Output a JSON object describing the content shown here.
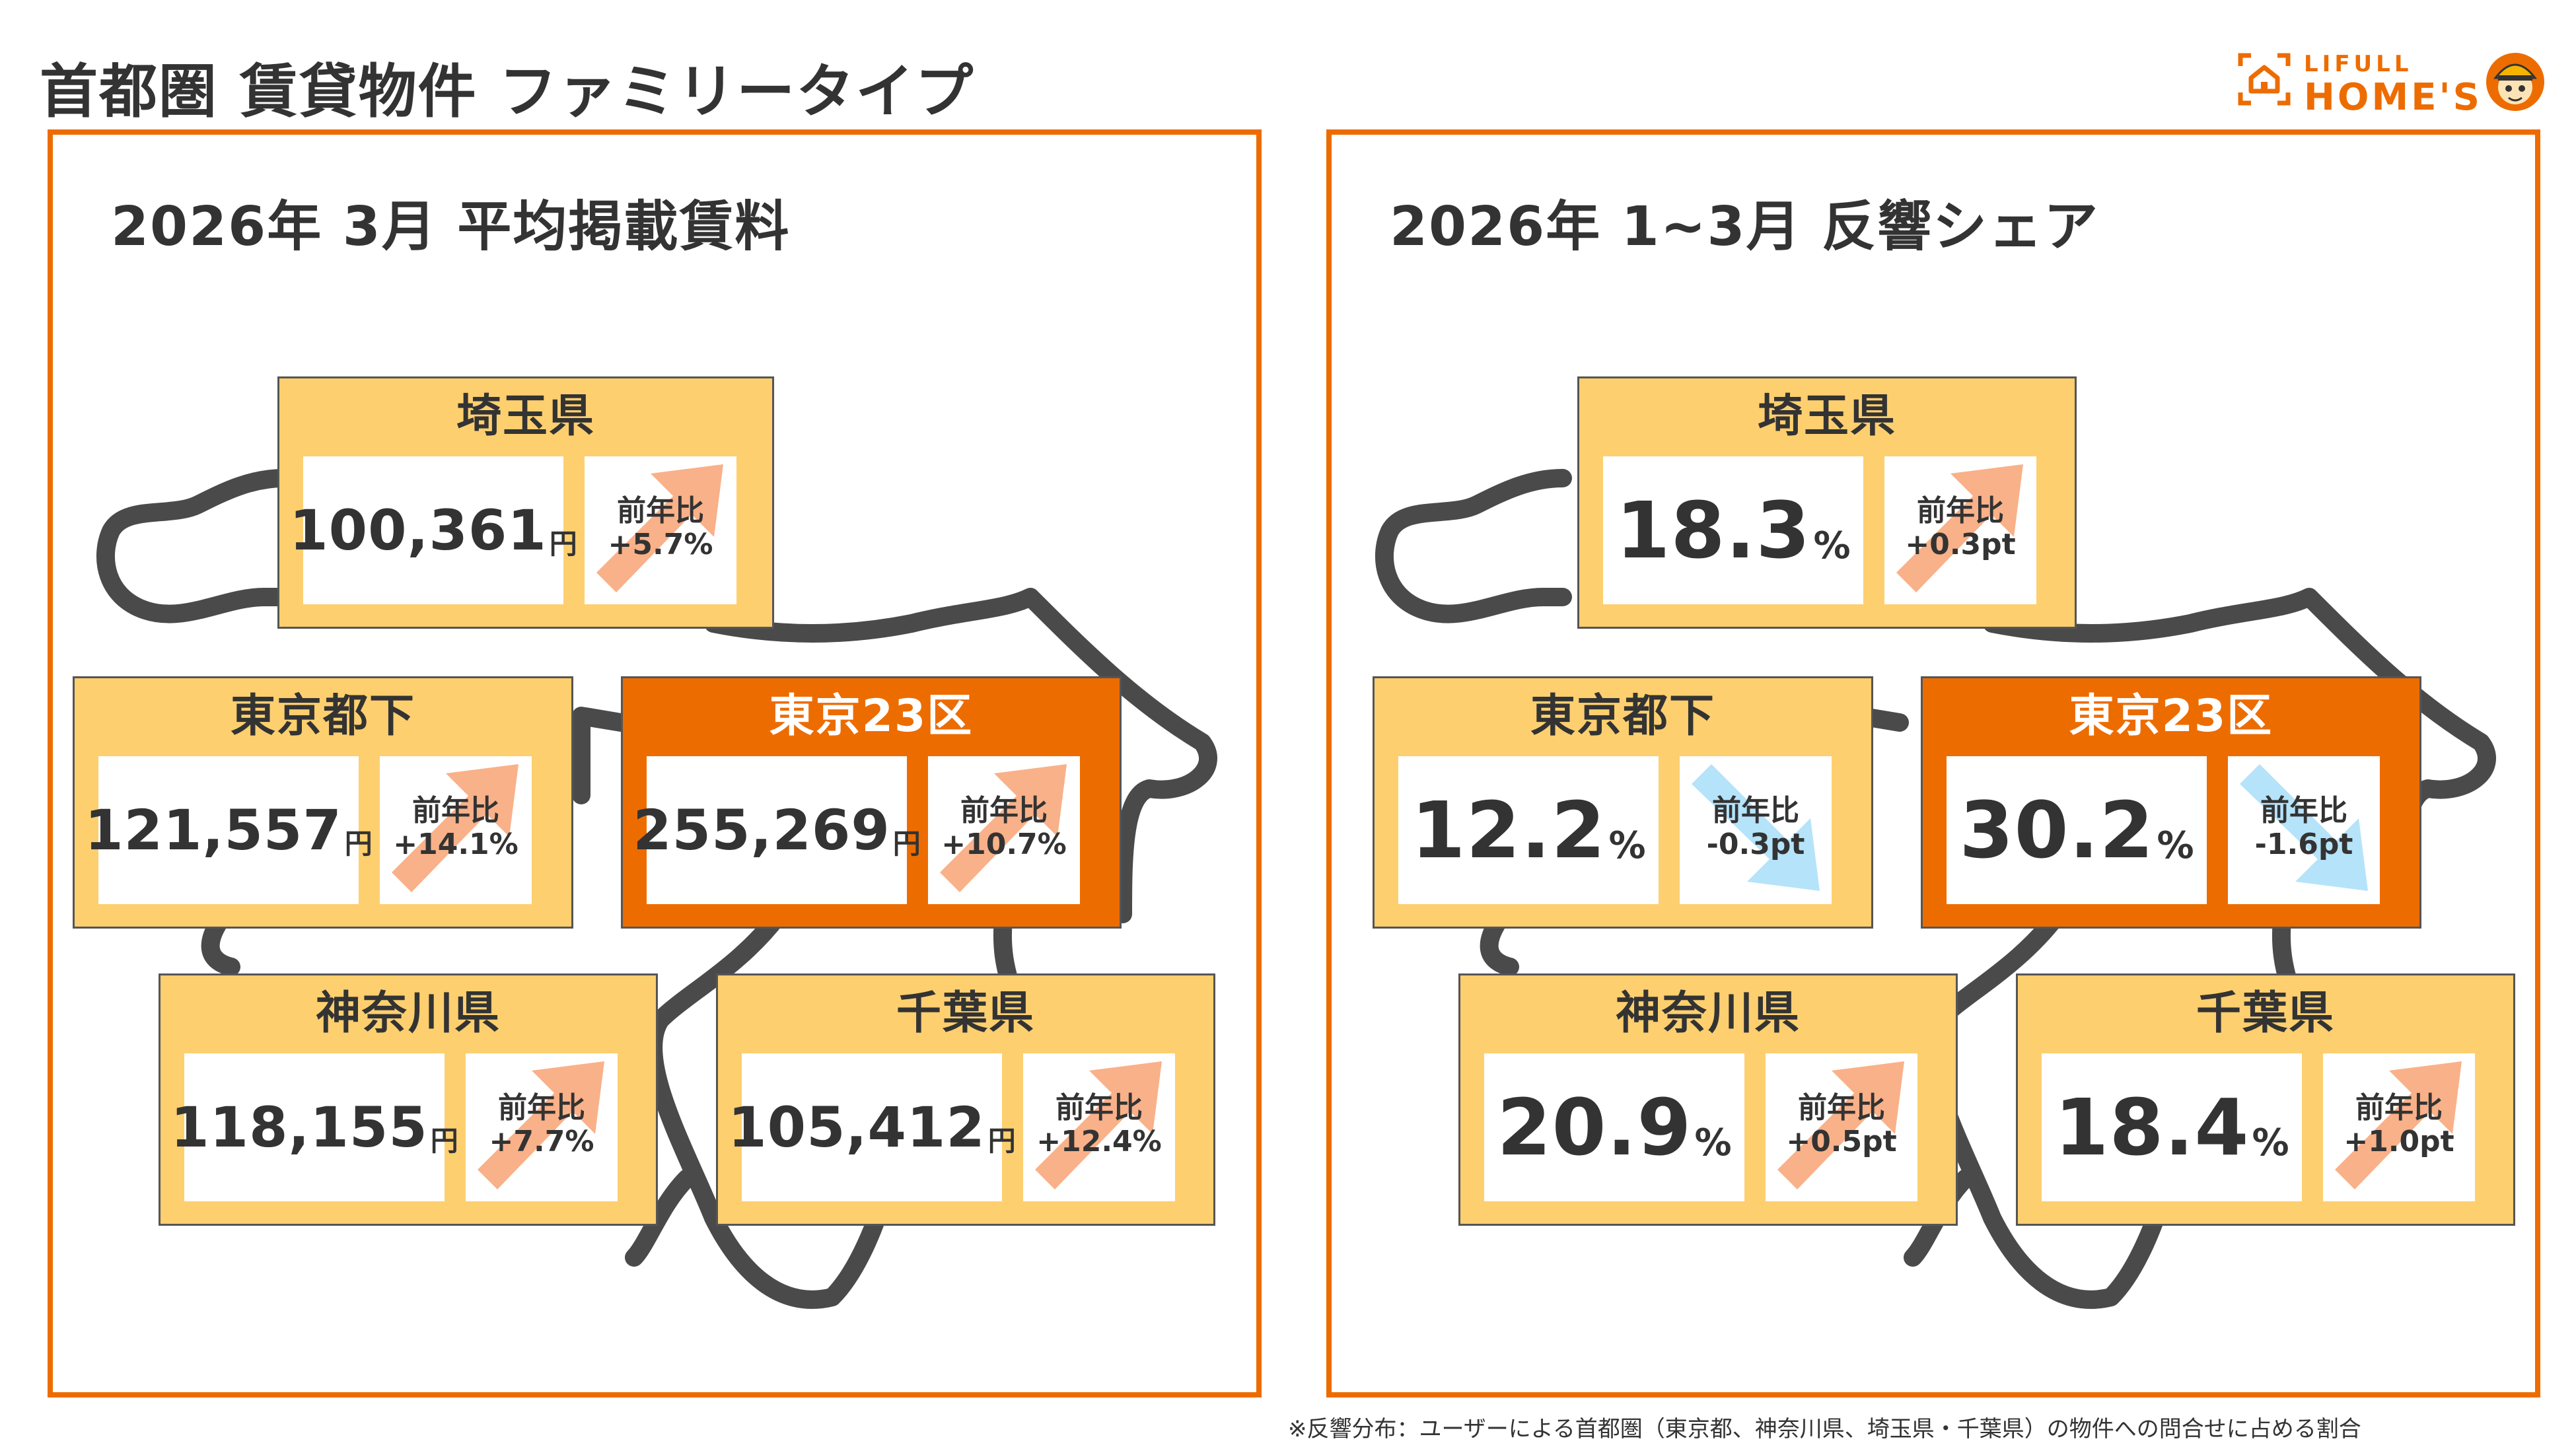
{
  "title": "首都圏 賃貸物件 ファミリータイプ",
  "logo": {
    "line1": "LIFULL",
    "line2": "HOME'S",
    "brand_color": "#ED6C00"
  },
  "colors": {
    "accent": "#ED6C00",
    "card": "#FDCF6F",
    "up_arrow": "#F9B189",
    "down_arrow": "#B5E3FA"
  },
  "left_panel": {
    "title": "2026年 3月 平均掲載賃料",
    "unit": "円",
    "change_label": "前年比",
    "cards": [
      {
        "name": "埼玉県",
        "value": "100,361",
        "change": "+5.7%",
        "direction": "up",
        "highlight": false
      },
      {
        "name": "東京都下",
        "value": "121,557",
        "change": "+14.1%",
        "direction": "up",
        "highlight": false
      },
      {
        "name": "東京23区",
        "value": "255,269",
        "change": "+10.7%",
        "direction": "up",
        "highlight": true
      },
      {
        "name": "神奈川県",
        "value": "118,155",
        "change": "+7.7%",
        "direction": "up",
        "highlight": false
      },
      {
        "name": "千葉県",
        "value": "105,412",
        "change": "+12.4%",
        "direction": "up",
        "highlight": false
      }
    ]
  },
  "right_panel": {
    "title": "2026年 1~3月 反響シェア",
    "unit": "%",
    "change_label": "前年比",
    "cards": [
      {
        "name": "埼玉県",
        "value": "18.3",
        "change": "+0.3pt",
        "direction": "up",
        "highlight": false
      },
      {
        "name": "東京都下",
        "value": "12.2",
        "change": "-0.3pt",
        "direction": "down",
        "highlight": false
      },
      {
        "name": "東京23区",
        "value": "30.2",
        "change": "-1.6pt",
        "direction": "down",
        "highlight": true
      },
      {
        "name": "神奈川県",
        "value": "20.9",
        "change": "+0.5pt",
        "direction": "up",
        "highlight": false
      },
      {
        "name": "千葉県",
        "value": "18.4",
        "change": "+1.0pt",
        "direction": "up",
        "highlight": false
      }
    ]
  },
  "footnote": "※反響分布：ユーザーによる首都圏（東京都、神奈川県、埼玉県・千葉県）の物件への問合せに占める割合"
}
